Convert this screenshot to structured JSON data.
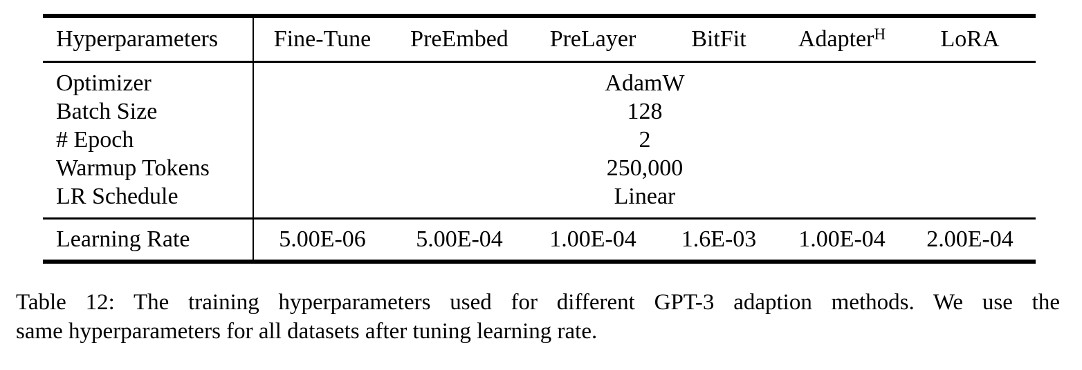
{
  "table": {
    "corner_label": "Hyperparameters",
    "columns": [
      {
        "text": "Fine-Tune"
      },
      {
        "text": "PreEmbed"
      },
      {
        "text": "PreLayer"
      },
      {
        "text": "BitFit"
      },
      {
        "text": "Adapter",
        "sup": "H"
      },
      {
        "text": "LoRA"
      }
    ],
    "shared_rows": [
      {
        "label": "Optimizer",
        "value": "AdamW"
      },
      {
        "label": "Batch Size",
        "value": "128"
      },
      {
        "label": "# Epoch",
        "value": "2"
      },
      {
        "label": "Warmup Tokens",
        "value": "250,000"
      },
      {
        "label": "LR Schedule",
        "value": "Linear"
      }
    ],
    "learning_rate": {
      "label": "Learning Rate",
      "values": [
        "5.00E-06",
        "5.00E-04",
        "1.00E-04",
        "1.6E-03",
        "1.00E-04",
        "2.00E-04"
      ]
    }
  },
  "caption": {
    "line1": "Table 12: The training hyperparameters used for different GPT-3 adaption methods. We use the",
    "line2": "same hyperparameters for all datasets after tuning learning rate."
  }
}
